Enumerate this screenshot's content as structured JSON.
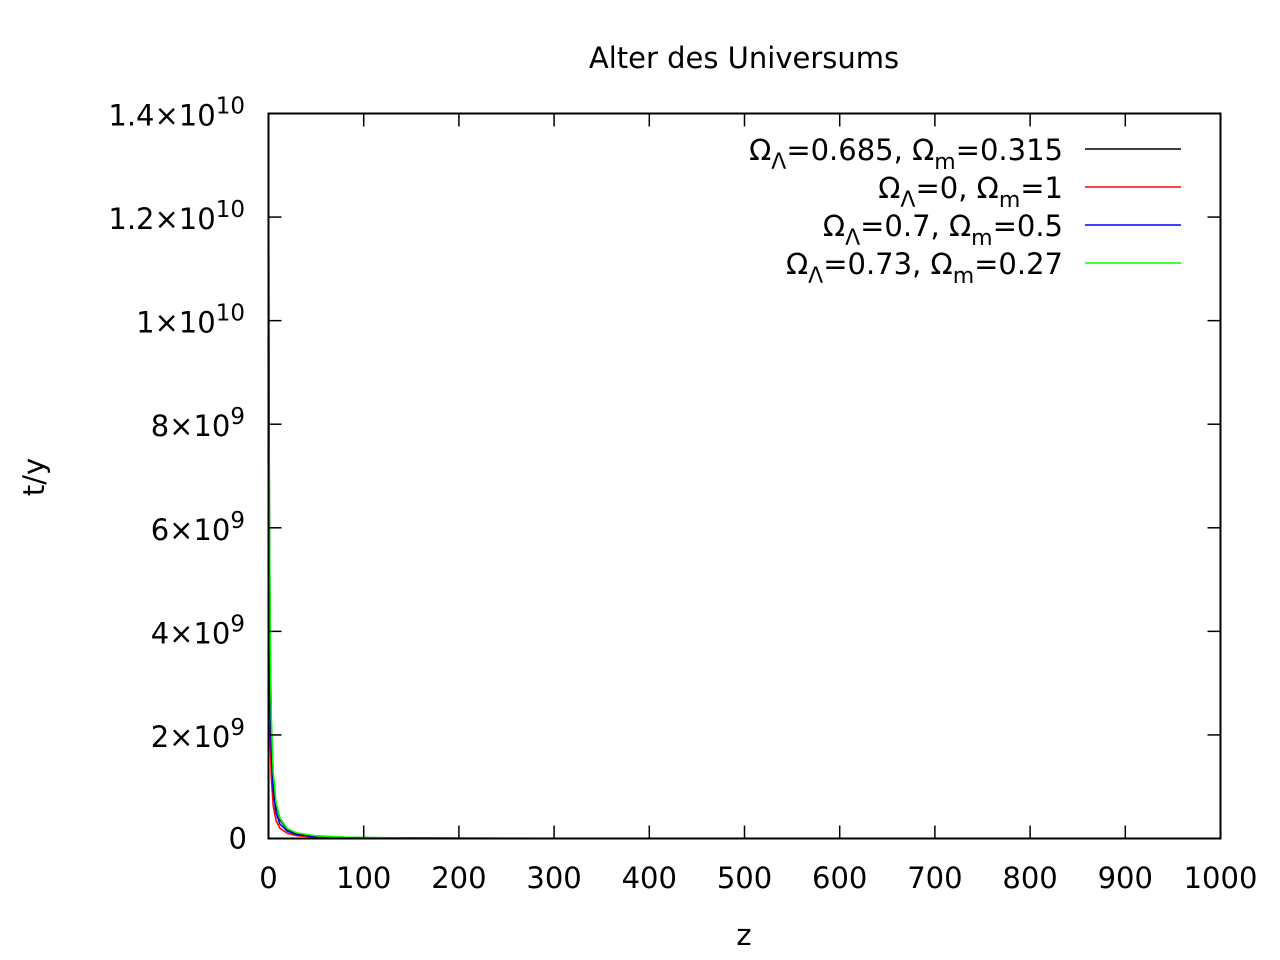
{
  "chart_data": {
    "type": "line",
    "title": "Alter des Universums",
    "xlabel": "z",
    "ylabel": "t/y",
    "xlim": [
      0,
      1000
    ],
    "ylim": [
      0,
      14000000000
    ],
    "grid": false,
    "legend_position": "top-right",
    "x_ticks": [
      {
        "value": 0,
        "label": "0"
      },
      {
        "value": 100,
        "label": "100"
      },
      {
        "value": 200,
        "label": "200"
      },
      {
        "value": 300,
        "label": "300"
      },
      {
        "value": 400,
        "label": "400"
      },
      {
        "value": 500,
        "label": "500"
      },
      {
        "value": 600,
        "label": "600"
      },
      {
        "value": 700,
        "label": "700"
      },
      {
        "value": 800,
        "label": "800"
      },
      {
        "value": 900,
        "label": "900"
      },
      {
        "value": 1000,
        "label": "1000"
      }
    ],
    "y_ticks": [
      {
        "value": 0,
        "mantissa": "0",
        "exponent": ""
      },
      {
        "value": 2000000000,
        "mantissa": "2×10",
        "exponent": "9"
      },
      {
        "value": 4000000000,
        "mantissa": "4×10",
        "exponent": "9"
      },
      {
        "value": 6000000000,
        "mantissa": "6×10",
        "exponent": "9"
      },
      {
        "value": 8000000000,
        "mantissa": "8×10",
        "exponent": "9"
      },
      {
        "value": 10000000000,
        "mantissa": "1×10",
        "exponent": "10"
      },
      {
        "value": 12000000000,
        "mantissa": "1.2×10",
        "exponent": "10"
      },
      {
        "value": 14000000000,
        "mantissa": "1.4×10",
        "exponent": "10"
      }
    ],
    "series": [
      {
        "legend": {
          "a": "Ω",
          "a_sub": "Λ",
          "b": "=0.685, Ω",
          "b_sub": "m",
          "c": "=0.315"
        },
        "color": "#000000",
        "x": [
          0,
          0.5,
          1,
          2,
          3,
          5,
          8,
          12,
          20,
          30,
          50,
          80,
          100,
          150,
          200,
          300,
          400,
          500,
          600,
          700,
          800,
          900,
          1000
        ],
        "y": [
          13800000000,
          8600000000,
          5900000000,
          3300000000,
          2150000000,
          1190000000,
          640000000,
          363000000,
          171000000,
          98000000,
          47000000,
          24000000,
          17000000,
          9500000,
          6200000,
          3400000,
          2200000,
          1600000,
          1200000,
          980000,
          810000,
          680000,
          580000
        ]
      },
      {
        "legend": {
          "a": "Ω",
          "a_sub": "Λ",
          "b": "=0, Ω",
          "b_sub": "m",
          "c": "=1"
        },
        "color": "#ff0000",
        "x": [
          0,
          0.5,
          1,
          2,
          3,
          5,
          8,
          12,
          20,
          30,
          50,
          80,
          100,
          150,
          200,
          300,
          400,
          500,
          600,
          700,
          800,
          900,
          1000
        ],
        "y": [
          9300000000,
          5070000000,
          3300000000,
          1790000000,
          1160000000,
          630000000,
          345000000,
          198000000,
          99000000,
          54000000,
          25000000,
          13000000,
          9100000,
          5000000,
          3300000,
          1800000,
          1160000,
          830000,
          630000,
          500000,
          410000,
          340000,
          290000
        ]
      },
      {
        "legend": {
          "a": "Ω",
          "a_sub": "Λ",
          "b": "=0.7, Ω",
          "b_sub": "m",
          "c": "=0.5"
        },
        "color": "#0000ff",
        "x": [
          0,
          0.5,
          1,
          2,
          3,
          5,
          8,
          12,
          20,
          30,
          50,
          80,
          100,
          150,
          200,
          300,
          400,
          500,
          600,
          700,
          800,
          900,
          1000
        ],
        "y": [
          11500000000,
          6900000000,
          4700000000,
          2600000000,
          1680000000,
          900000000,
          490000000,
          280000000,
          140000000,
          76000000,
          36000000,
          18000000,
          13000000,
          7000000,
          4600000,
          2500000,
          1650000,
          1180000,
          900000,
          710000,
          580000,
          480000,
          410000
        ]
      },
      {
        "legend": {
          "a": "Ω",
          "a_sub": "Λ",
          "b": "=0.73, Ω",
          "b_sub": "m",
          "c": "=0.27"
        },
        "color": "#00ff00",
        "x": [
          0,
          0.5,
          1,
          2,
          3,
          5,
          8,
          12,
          20,
          30,
          50,
          80,
          100,
          150,
          200,
          300,
          400,
          500,
          600,
          700,
          800,
          900,
          1000
        ],
        "y": [
          13700000000,
          8700000000,
          6000000000,
          3500000000,
          2300000000,
          1270000000,
          690000000,
          392000000,
          185000000,
          106000000,
          51000000,
          26000000,
          18500000,
          10200000,
          6700000,
          3700000,
          2400000,
          1730000,
          1320000,
          1060000,
          870000,
          730000,
          620000
        ]
      }
    ]
  }
}
